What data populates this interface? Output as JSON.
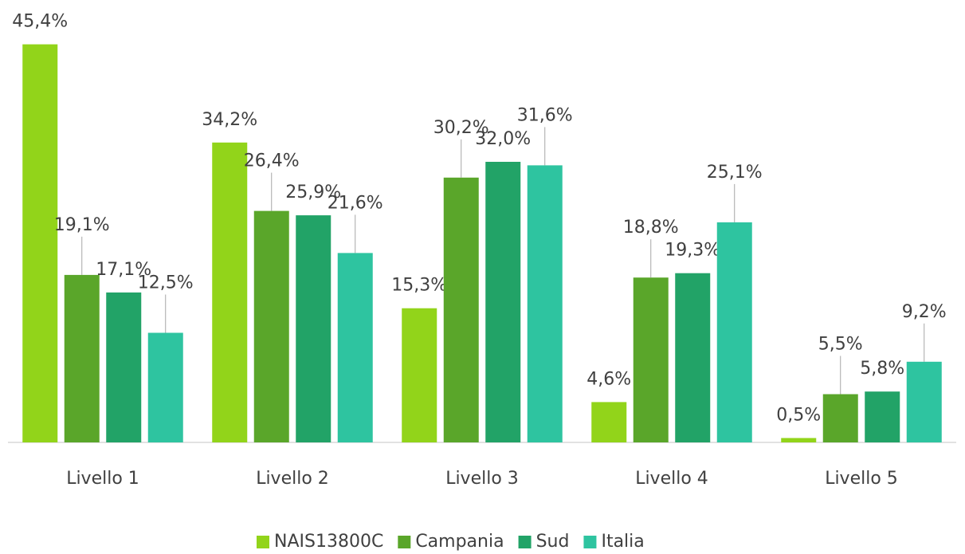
{
  "chart_data": {
    "type": "bar",
    "categories": [
      "Livello 1",
      "Livello 2",
      "Livello 3",
      "Livello 4",
      "Livello 5"
    ],
    "series": [
      {
        "name": "NAIS13800C",
        "color": "#92d41a",
        "values": [
          45.4,
          34.2,
          15.3,
          4.6,
          0.5
        ],
        "value_labels": [
          "45,4%",
          "34,2%",
          "15,3%",
          "4,6%",
          "0,5%"
        ]
      },
      {
        "name": "Campania",
        "color": "#5aa62a",
        "values": [
          19.1,
          26.4,
          30.2,
          18.8,
          5.5
        ],
        "value_labels": [
          "19,1%",
          "26,4%",
          "30,2%",
          "18,8%",
          "5,5%"
        ]
      },
      {
        "name": "Sud",
        "color": "#22a367",
        "values": [
          17.1,
          25.9,
          32.0,
          19.3,
          5.8
        ],
        "value_labels": [
          "17,1%",
          "25,9%",
          "32,0%",
          "19,3%",
          "5,8%"
        ]
      },
      {
        "name": "Italia",
        "color": "#2ec4a0",
        "values": [
          12.5,
          21.6,
          31.6,
          25.1,
          9.2
        ],
        "value_labels": [
          "12,5%",
          "21,6%",
          "31,6%",
          "25,1%",
          "9,2%"
        ]
      }
    ],
    "legend": "bottom"
  }
}
